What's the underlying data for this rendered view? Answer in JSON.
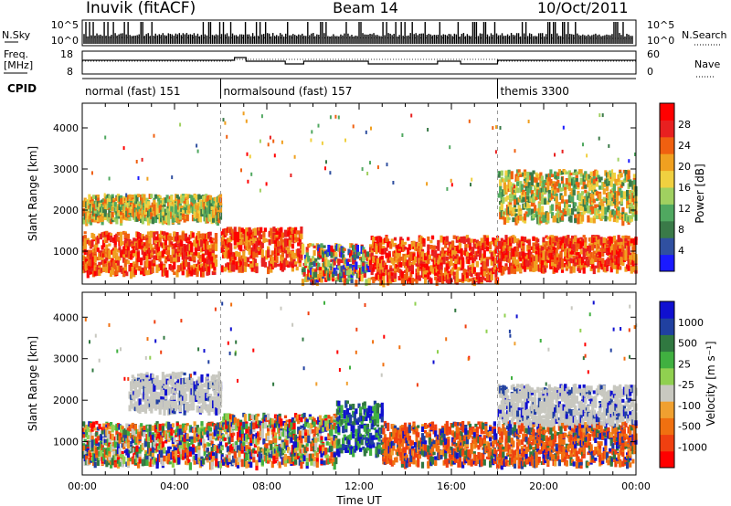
{
  "header": {
    "station": "Inuvik (fitACF)",
    "beam": "Beam 14",
    "date": "10/Oct/2011"
  },
  "summary_panels": {
    "nsky_label": "N.Sky",
    "nsky_ticks": [
      "10^5",
      "10^0"
    ],
    "nsearch_label": "N.Search",
    "nsearch_ticks": [
      "10^5",
      "10^0"
    ],
    "freq_label_1": "Freq.",
    "freq_label_2": "[MHz]",
    "freq_ticks": [
      "18",
      "8"
    ],
    "nave_label": "Nave",
    "nave_ticks": [
      "60",
      "0"
    ],
    "cpid_label": "CPID"
  },
  "cpid_segments": [
    {
      "label": "normal (fast) 151",
      "start_hour": 0,
      "end_hour": 6
    },
    {
      "label": "normalsound (fast) 157",
      "start_hour": 6,
      "end_hour": 18
    },
    {
      "label": "themis 3300",
      "start_hour": 18,
      "end_hour": 24
    }
  ],
  "colors": {
    "power_scale": [
      "#1a1aff",
      "#3050a0",
      "#3a7a48",
      "#50a860",
      "#a0d060",
      "#f0d040",
      "#f0a020",
      "#f06010",
      "#e82020",
      "#ff0000"
    ],
    "velocity_scale": [
      "#ff0000",
      "#f04010",
      "#f07010",
      "#f0a030",
      "#c8c8c0",
      "#90d050",
      "#40b040",
      "#307840",
      "#2040a0",
      "#1010d0"
    ]
  },
  "chart_data": [
    {
      "type": "heatmap",
      "title": "Power",
      "ylabel": "Slant Range [km]",
      "xlabel": "Time UT",
      "xlim": [
        "00:00",
        "24:00"
      ],
      "ylim": [
        200,
        4600
      ],
      "x_ticks": [
        "00:00",
        "04:00",
        "08:00",
        "12:00",
        "16:00",
        "20:00",
        "00:00"
      ],
      "y_ticks": [
        1000,
        2000,
        3000,
        4000
      ],
      "colorbar": {
        "label": "Power [dB]",
        "ticks": [
          4,
          8,
          12,
          16,
          20,
          24,
          28
        ]
      },
      "bands": [
        {
          "start_hour": 0,
          "end_hour": 5.8,
          "range_low": 500,
          "range_high": 1500,
          "level": "high"
        },
        {
          "start_hour": 0,
          "end_hour": 6,
          "range_low": 1800,
          "range_high": 2400,
          "level": "mid"
        },
        {
          "start_hour": 6,
          "end_hour": 9.5,
          "range_low": 600,
          "range_high": 1600,
          "level": "high"
        },
        {
          "start_hour": 9.5,
          "end_hour": 12.5,
          "range_low": 300,
          "range_high": 1200,
          "level": "mixed"
        },
        {
          "start_hour": 12.5,
          "end_hour": 18,
          "range_low": 300,
          "range_high": 1400,
          "level": "high"
        },
        {
          "start_hour": 18,
          "end_hour": 24,
          "range_low": 600,
          "range_high": 1400,
          "level": "high"
        },
        {
          "start_hour": 18,
          "end_hour": 24,
          "range_low": 1800,
          "range_high": 3000,
          "level": "mid"
        }
      ]
    },
    {
      "type": "heatmap",
      "title": "Velocity",
      "ylabel": "Slant Range [km]",
      "xlabel": "Time UT",
      "xlim": [
        "00:00",
        "24:00"
      ],
      "ylim": [
        200,
        4600
      ],
      "x_ticks": [
        "00:00",
        "04:00",
        "08:00",
        "12:00",
        "16:00",
        "20:00",
        "00:00"
      ],
      "y_ticks": [
        1000,
        2000,
        3000,
        4000
      ],
      "colorbar": {
        "label": "Velocity [m s⁻¹]",
        "ticks": [
          1000,
          500,
          25,
          -25,
          -100,
          -500,
          -1000
        ]
      },
      "bands": [
        {
          "start_hour": 0,
          "end_hour": 6,
          "range_low": 500,
          "range_high": 1500,
          "level": "mixed"
        },
        {
          "start_hour": 2,
          "end_hour": 6,
          "range_low": 1800,
          "range_high": 2700,
          "level": "gray"
        },
        {
          "start_hour": 6,
          "end_hour": 11,
          "range_low": 500,
          "range_high": 1700,
          "level": "mixed"
        },
        {
          "start_hour": 11,
          "end_hour": 13,
          "range_low": 800,
          "range_high": 2000,
          "level": "blue"
        },
        {
          "start_hour": 13,
          "end_hour": 24,
          "range_low": 500,
          "range_high": 1500,
          "level": "orange"
        },
        {
          "start_hour": 18,
          "end_hour": 24,
          "range_low": 1500,
          "range_high": 2400,
          "level": "gray"
        }
      ]
    }
  ]
}
